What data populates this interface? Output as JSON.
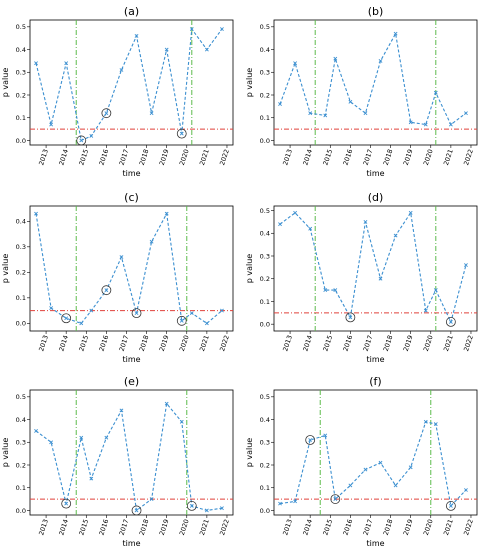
{
  "chart_data": [
    {
      "type": "line",
      "title": "(a)",
      "xlabel": "time",
      "ylabel": "p value",
      "x_ticks": [
        "2013",
        "2014",
        "2015",
        "2016",
        "2017",
        "2018",
        "2019",
        "2020",
        "2021",
        "2022"
      ],
      "ylim": [
        -0.02,
        0.53
      ],
      "y_ticks": [
        "0.0",
        "0.1",
        "0.2",
        "0.3",
        "0.4",
        "0.5"
      ],
      "y_tick_values": [
        0,
        0.1,
        0.2,
        0.3,
        0.4,
        0.5
      ],
      "significance_level": 0.05,
      "event_lines_x": [
        2014.5,
        2020.25
      ],
      "series": [
        {
          "x": [
            2012.5,
            2013.25,
            2014.0,
            2014.75,
            2015.25,
            2016.0,
            2016.75,
            2017.5,
            2018.25,
            2019.0,
            2019.75,
            2020.25,
            2021.0,
            2021.75
          ],
          "y": [
            0.34,
            0.07,
            0.34,
            0.0,
            0.02,
            0.12,
            0.31,
            0.46,
            0.12,
            0.4,
            0.03,
            0.49,
            0.4,
            0.49
          ]
        }
      ],
      "highlighted_x": [
        2014.75,
        2016.0,
        2019.75
      ]
    },
    {
      "type": "line",
      "title": "(b)",
      "xlabel": "time",
      "ylabel": "p value",
      "x_ticks": [
        "2013",
        "2014",
        "2015",
        "2016",
        "2017",
        "2018",
        "2019",
        "2020",
        "2021",
        "2022"
      ],
      "ylim": [
        -0.02,
        0.53
      ],
      "y_ticks": [
        "0.0",
        "0.1",
        "0.2",
        "0.3",
        "0.4",
        "0.5"
      ],
      "y_tick_values": [
        0,
        0.1,
        0.2,
        0.3,
        0.4,
        0.5
      ],
      "significance_level": 0.05,
      "event_lines_x": [
        2014.25,
        2020.25
      ],
      "series": [
        {
          "x": [
            2012.5,
            2013.25,
            2014.0,
            2014.75,
            2015.25,
            2016.0,
            2016.75,
            2017.5,
            2018.25,
            2019.0,
            2019.75,
            2020.25,
            2021.0,
            2021.75
          ],
          "y": [
            0.16,
            0.34,
            0.12,
            0.11,
            0.36,
            0.17,
            0.12,
            0.35,
            0.47,
            0.08,
            0.07,
            0.21,
            0.07,
            0.12
          ]
        }
      ],
      "highlighted_x": []
    },
    {
      "type": "line",
      "title": "(c)",
      "xlabel": "time",
      "ylabel": "p value",
      "x_ticks": [
        "2013",
        "2014",
        "2015",
        "2016",
        "2017",
        "2018",
        "2019",
        "2020",
        "2021",
        "2022"
      ],
      "ylim": [
        -0.03,
        0.46
      ],
      "y_ticks": [
        "0.0",
        "0.1",
        "0.2",
        "0.3",
        "0.4"
      ],
      "y_tick_values": [
        0,
        0.1,
        0.2,
        0.3,
        0.4
      ],
      "significance_level": 0.05,
      "event_lines_x": [
        2014.5,
        2020.0
      ],
      "series": [
        {
          "x": [
            2012.5,
            2013.25,
            2014.0,
            2014.75,
            2015.25,
            2016.0,
            2016.75,
            2017.5,
            2018.25,
            2019.0,
            2019.75,
            2020.25,
            2021.0,
            2021.75
          ],
          "y": [
            0.43,
            0.06,
            0.02,
            0.0,
            0.05,
            0.13,
            0.26,
            0.04,
            0.32,
            0.43,
            0.01,
            0.04,
            0.0,
            0.05
          ]
        }
      ],
      "highlighted_x": [
        2014.0,
        2016.0,
        2017.5,
        2019.75
      ]
    },
    {
      "type": "line",
      "title": "(d)",
      "xlabel": "time",
      "ylabel": "p value",
      "x_ticks": [
        "2013",
        "2014",
        "2015",
        "2016",
        "2017",
        "2018",
        "2019",
        "2020",
        "2021",
        "2022"
      ],
      "ylim": [
        -0.03,
        0.52
      ],
      "y_ticks": [
        "0.0",
        "0.1",
        "0.2",
        "0.3",
        "0.4",
        "0.5"
      ],
      "y_tick_values": [
        0,
        0.1,
        0.2,
        0.3,
        0.4,
        0.5
      ],
      "significance_level": 0.05,
      "event_lines_x": [
        2014.25,
        2020.25
      ],
      "series": [
        {
          "x": [
            2012.5,
            2013.25,
            2014.0,
            2014.75,
            2015.25,
            2016.0,
            2016.75,
            2017.5,
            2018.25,
            2019.0,
            2019.75,
            2020.25,
            2021.0,
            2021.75
          ],
          "y": [
            0.44,
            0.49,
            0.42,
            0.15,
            0.15,
            0.03,
            0.45,
            0.2,
            0.39,
            0.49,
            0.06,
            0.15,
            0.01,
            0.26
          ]
        }
      ],
      "highlighted_x": [
        2016.0,
        2021.0
      ]
    },
    {
      "type": "line",
      "title": "(e)",
      "xlabel": "time",
      "ylabel": "p value",
      "x_ticks": [
        "2013",
        "2014",
        "2015",
        "2016",
        "2017",
        "2018",
        "2019",
        "2020",
        "2021",
        "2022"
      ],
      "ylim": [
        -0.02,
        0.53
      ],
      "y_ticks": [
        "0.0",
        "0.1",
        "0.2",
        "0.3",
        "0.4",
        "0.5"
      ],
      "y_tick_values": [
        0,
        0.1,
        0.2,
        0.3,
        0.4,
        0.5
      ],
      "significance_level": 0.05,
      "event_lines_x": [
        2014.5,
        2020.0
      ],
      "series": [
        {
          "x": [
            2012.5,
            2013.25,
            2014.0,
            2014.75,
            2015.25,
            2016.0,
            2016.75,
            2017.5,
            2018.25,
            2019.0,
            2019.75,
            2020.25,
            2021.0,
            2021.75
          ],
          "y": [
            0.35,
            0.3,
            0.03,
            0.32,
            0.14,
            0.32,
            0.44,
            0.0,
            0.05,
            0.47,
            0.39,
            0.02,
            0.0,
            0.01
          ]
        }
      ],
      "highlighted_x": [
        2014.0,
        2017.5,
        2020.25
      ]
    },
    {
      "type": "line",
      "title": "(f)",
      "xlabel": "time",
      "ylabel": "p value",
      "x_ticks": [
        "2013",
        "2014",
        "2015",
        "2016",
        "2017",
        "2018",
        "2019",
        "2020",
        "2021",
        "2022"
      ],
      "ylim": [
        -0.02,
        0.53
      ],
      "y_ticks": [
        "0.0",
        "0.1",
        "0.2",
        "0.3",
        "0.4",
        "0.5"
      ],
      "y_tick_values": [
        0,
        0.1,
        0.2,
        0.3,
        0.4,
        0.5
      ],
      "significance_level": 0.05,
      "event_lines_x": [
        2014.5,
        2020.0
      ],
      "series": [
        {
          "x": [
            2012.5,
            2013.25,
            2014.0,
            2014.75,
            2015.25,
            2016.0,
            2016.75,
            2017.5,
            2018.25,
            2019.0,
            2019.75,
            2020.25,
            2021.0,
            2021.75
          ],
          "y": [
            0.03,
            0.04,
            0.31,
            0.33,
            0.05,
            0.11,
            0.18,
            0.21,
            0.11,
            0.19,
            0.39,
            0.38,
            0.02,
            0.09
          ]
        }
      ],
      "highlighted_x": [
        2014.0,
        2015.25,
        2021.0
      ]
    }
  ]
}
